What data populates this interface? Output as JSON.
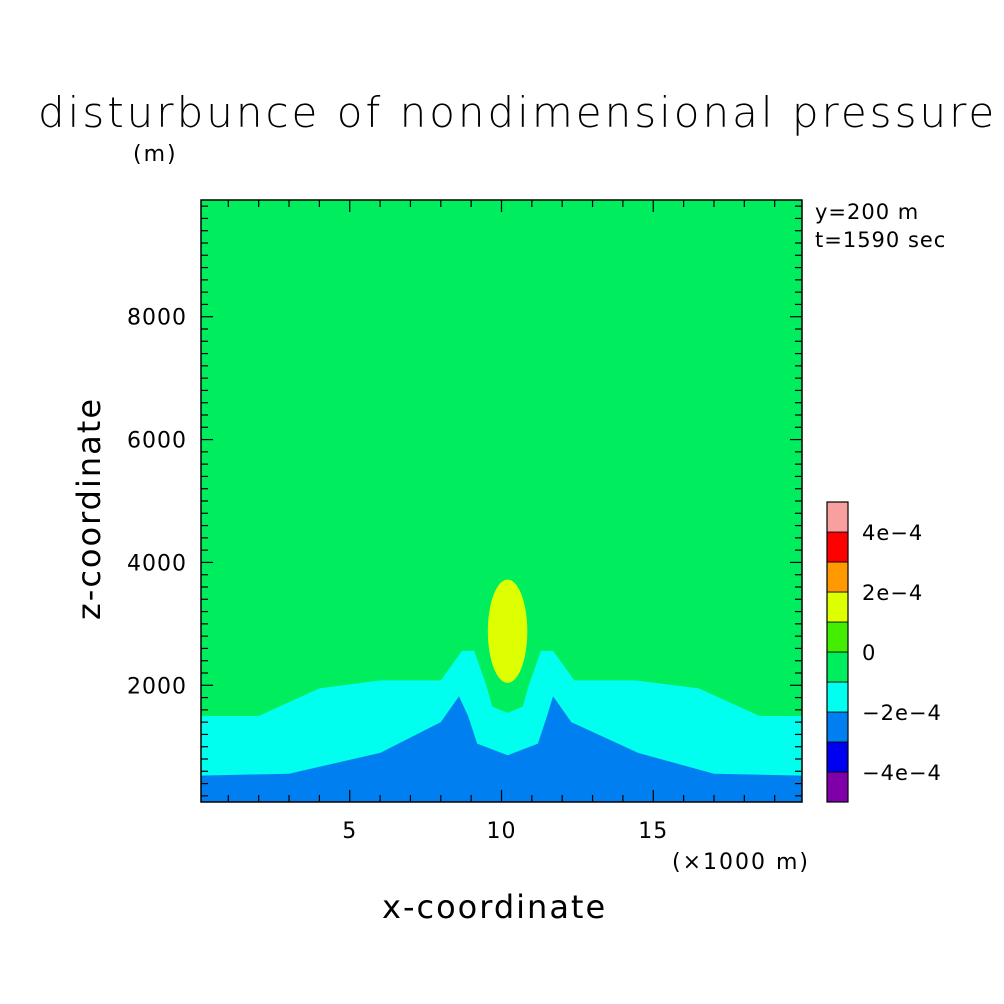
{
  "title": "disturbunce of nondimensional pressure",
  "y_unit": "(m)",
  "x_unit": "(×1000 m)",
  "info": {
    "y_position": "y=200 m",
    "time": "t=1590 sec"
  },
  "chart_data": {
    "type": "heatmap",
    "title": "disturbunce of nondimensional pressure",
    "xlabel": "x-coordinate",
    "ylabel": "z-coordinate",
    "x_units": "×1000 m",
    "y_units": "m",
    "xlim": [
      0.1,
      19.9
    ],
    "ylim": [
      100,
      9900
    ],
    "x_ticks": [
      5,
      10,
      15
    ],
    "y_ticks": [
      2000,
      4000,
      6000,
      8000
    ],
    "colorbar": {
      "levels": [
        -0.0005,
        -0.0004,
        -0.0003,
        -0.0002,
        -0.0001,
        0,
        0.0001,
        0.0002,
        0.0003,
        0.0004,
        0.0005
      ],
      "tick_labels": [
        "4e-4",
        "2e-4",
        "0",
        "-2e-4",
        "-4e-4"
      ],
      "colors": [
        "#7f00a8",
        "#0000f0",
        "#0080f0",
        "#00ffee",
        "#00ee5e",
        "#44ee00",
        "#ddff00",
        "#ff9900",
        "#ff0000",
        "#f8a0a0"
      ]
    },
    "regions": [
      {
        "range": [
          -0.0003,
          -0.0002
        ],
        "color": "#0080f0",
        "description": "two small lobes at the surface near x=8 and x=12"
      },
      {
        "range": [
          -0.0002,
          -0.0001
        ],
        "color": "#00ffee",
        "description": "layer near the surface below about 500 m, rising to about 1800 m near x=8.7 and x=11.6"
      },
      {
        "range": [
          -0.0001,
          0
        ],
        "color": "#00ee5e",
        "description": "layer up to about 1500–2100 m, rising to about 2600 m near x=8.8 and x=11.4"
      },
      {
        "range": [
          0,
          0.0001
        ],
        "color": "#44ee00",
        "description": "background field above"
      },
      {
        "range": [
          0.0001,
          0.0002
        ],
        "color": "#ddff00",
        "description": "oval near x=10.2 between about 2000 m and 3700 m"
      }
    ]
  }
}
